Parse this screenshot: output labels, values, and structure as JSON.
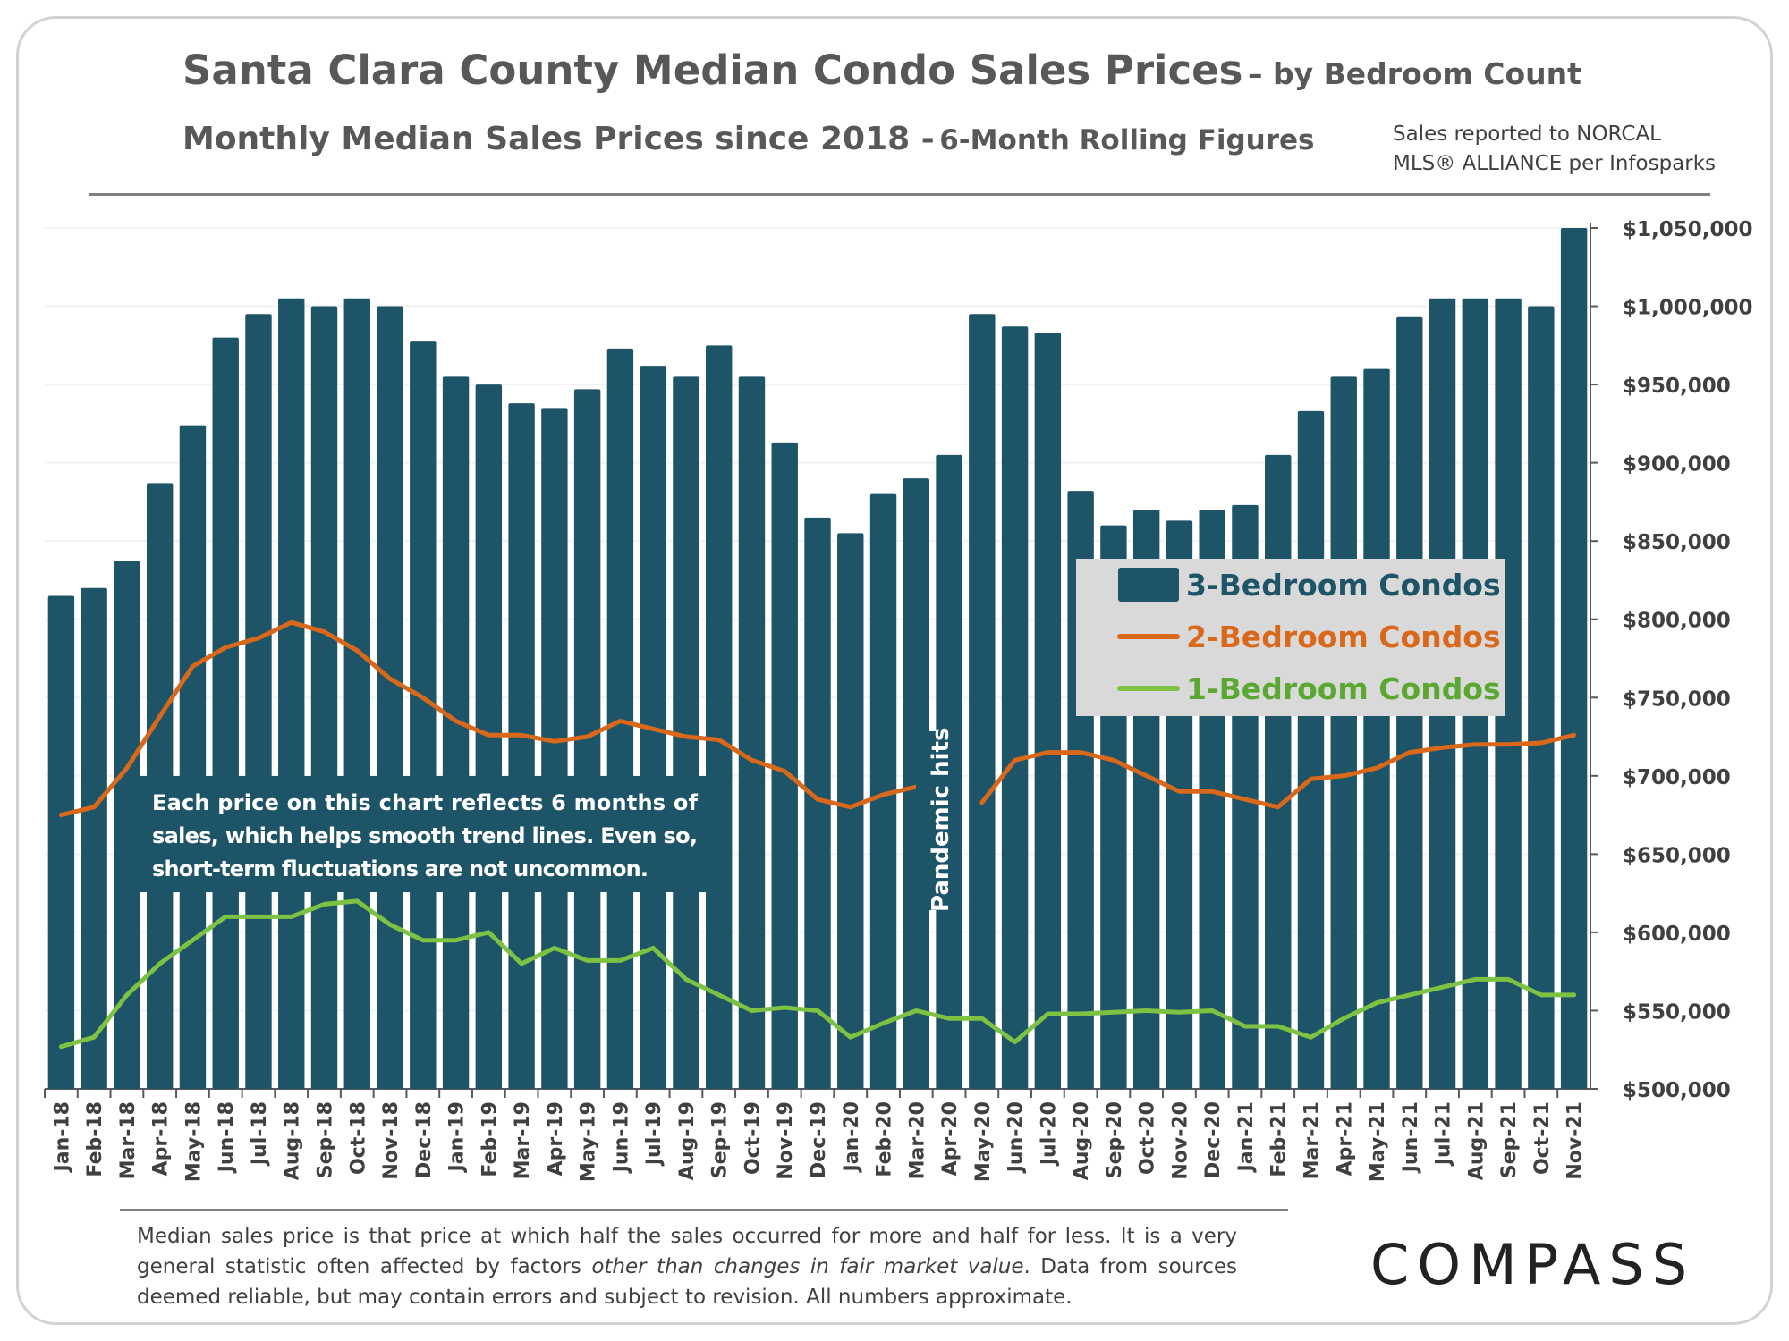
{
  "header": {
    "title_main": "Santa Clara County Median Condo Sales Prices",
    "title_suffix": "– by Bedroom Count",
    "subtitle_main": "Monthly Median Sales Prices since 2018 -",
    "subtitle_suffix": "6-Month Rolling Figures",
    "source_line1": "Sales reported to NORCAL",
    "source_line2": "MLS® ALLIANCE per Infosparks"
  },
  "footer": {
    "note_part1": "Median sales price is that price at which half the sales occurred for more and half for less. It is a very general statistic often affected by factors",
    "note_italic": "other than changes in fair market value",
    "note_part2": ". Data from sources deemed reliable, but may contain errors and subject to revision. All numbers approximate.",
    "logo": "COMPASS"
  },
  "annotations": {
    "smoothing_note": [
      "Each price on this chart reflects 6 months of",
      "sales, which helps smooth trend lines. Even so,",
      "short-term fluctuations are not uncommon."
    ],
    "pandemic": "Pandemic hits"
  },
  "colors": {
    "bar": "#1e5468",
    "two_bedroom": "#d9681a",
    "one_bedroom": "#7dc242",
    "legend_bg": "#d9d9d9",
    "note_bg": "#1e5468"
  },
  "chart_data": {
    "type": "bar",
    "categories": [
      "Jan-18",
      "Feb-18",
      "Mar-18",
      "Apr-18",
      "May-18",
      "Jun-18",
      "Jul-18",
      "Aug-18",
      "Sep-18",
      "Oct-18",
      "Nov-18",
      "Dec-18",
      "Jan-19",
      "Feb-19",
      "Mar-19",
      "Apr-19",
      "May-19",
      "Jun-19",
      "Jul-19",
      "Aug-19",
      "Sep-19",
      "Oct-19",
      "Nov-19",
      "Dec-19",
      "Jan-20",
      "Feb-20",
      "Mar-20",
      "Apr-20",
      "May-20",
      "Jun-20",
      "Jul-20",
      "Aug-20",
      "Sep-20",
      "Oct-20",
      "Nov-20",
      "Dec-20",
      "Jan-21",
      "Feb-21",
      "Mar-21",
      "Apr-21",
      "May-21",
      "Jun-21",
      "Jul-21",
      "Aug-21",
      "Sep-21",
      "Oct-21",
      "Nov-21"
    ],
    "series": [
      {
        "name": "3-Bedroom Condos",
        "type": "bar",
        "values": [
          815000,
          820000,
          837000,
          887000,
          924000,
          980000,
          995000,
          1005000,
          1000000,
          1005000,
          1000000,
          978000,
          955000,
          950000,
          938000,
          935000,
          947000,
          973000,
          962000,
          955000,
          975000,
          955000,
          913000,
          865000,
          855000,
          880000,
          890000,
          905000,
          995000,
          987000,
          983000,
          882000,
          860000,
          870000,
          863000,
          870000,
          873000,
          905000,
          933000,
          955000,
          960000,
          993000,
          1005000,
          1005000,
          1005000,
          1000000,
          1050000
        ]
      },
      {
        "name": "2-Bedroom Condos",
        "type": "line",
        "values": [
          675000,
          680000,
          705000,
          738000,
          770000,
          782000,
          788000,
          798000,
          792000,
          780000,
          762000,
          750000,
          735000,
          726000,
          726000,
          722000,
          725000,
          735000,
          730000,
          725000,
          723000,
          710000,
          703000,
          685000,
          680000,
          688000,
          693000,
          null,
          683000,
          710000,
          715000,
          715000,
          710000,
          700000,
          690000,
          690000,
          685000,
          680000,
          698000,
          700000,
          705000,
          715000,
          718000,
          720000,
          720000,
          721000,
          726000
        ]
      },
      {
        "name": "1-Bedroom Condos",
        "type": "line",
        "values": [
          527000,
          533000,
          560000,
          580000,
          595000,
          610000,
          610000,
          610000,
          618000,
          620000,
          605000,
          595000,
          595000,
          600000,
          580000,
          590000,
          582000,
          582000,
          590000,
          570000,
          560000,
          550000,
          552000,
          550000,
          533000,
          542000,
          550000,
          545000,
          545000,
          530000,
          548000,
          548000,
          549000,
          550000,
          549000,
          550000,
          540000,
          540000,
          533000,
          545000,
          555000,
          560000,
          565000,
          570000,
          570000,
          560000,
          560000
        ]
      }
    ],
    "y_axis": {
      "min": 500000,
      "max": 1050000,
      "ticks": [
        "$500,000",
        "$550,000",
        "$600,000",
        "$650,000",
        "$700,000",
        "$750,000",
        "$800,000",
        "$850,000",
        "$900,000",
        "$950,000",
        "$1,000,000",
        "$1,050,000"
      ],
      "position": "right"
    },
    "legend": {
      "placement": "right",
      "entries": [
        "3-Bedroom Condos",
        "2-Bedroom Condos",
        "1-Bedroom Condos"
      ]
    },
    "grid": true
  }
}
